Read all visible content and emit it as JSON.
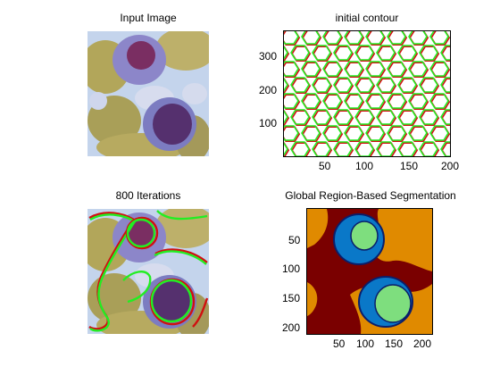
{
  "panels": {
    "input": {
      "title": "Input Image"
    },
    "contour": {
      "title": "initial contour",
      "xticks": [
        "50",
        "100",
        "150",
        "200"
      ],
      "yticks": [
        "300",
        "200",
        "100"
      ]
    },
    "iterations": {
      "title": "800 Iterations"
    },
    "segmentation": {
      "title": "Global Region-Based Segmentation",
      "xticks": [
        "50",
        "100",
        "150",
        "200"
      ],
      "yticks": [
        "50",
        "100",
        "150",
        "200"
      ]
    }
  },
  "colors": {
    "contour_green": "#22ee22",
    "contour_red": "#d01010",
    "seg_dark_red": "#7a0000",
    "seg_orange": "#e08a00",
    "seg_blue": "#0a78c8",
    "seg_green": "#7ede7e",
    "seg_navy": "#0a1e6a"
  }
}
